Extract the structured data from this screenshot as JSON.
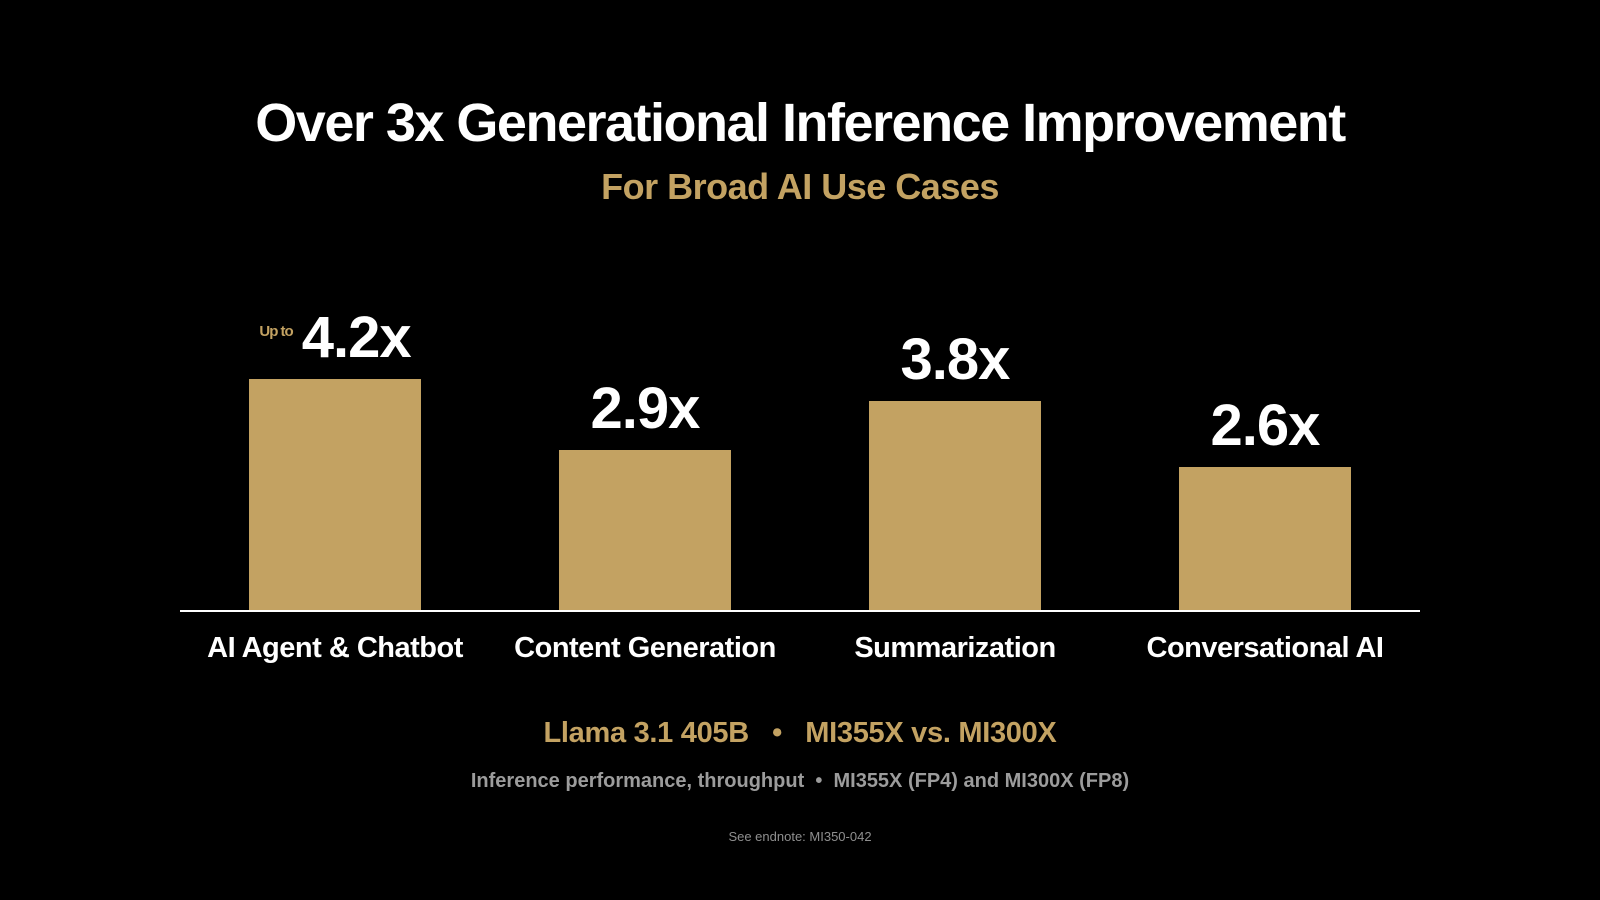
{
  "slide": {
    "title": "Over 3x Generational Inference Improvement",
    "subtitle": "For Broad AI Use Cases"
  },
  "chart_data": {
    "type": "bar",
    "title": "Over 3x Generational Inference Improvement",
    "subtitle": "For Broad AI Use Cases",
    "categories": [
      "AI Agent & Chatbot",
      "Content Generation",
      "Summarization",
      "Conversational AI"
    ],
    "values": [
      4.2,
      2.9,
      3.8,
      2.6
    ],
    "value_labels": [
      "4.2x",
      "2.9x",
      "3.8x",
      "2.6x"
    ],
    "value_prefixes": [
      "Up to",
      "",
      "",
      ""
    ],
    "bar_color": "#c3a262",
    "baseline_color": "#ffffff",
    "ylim": [
      0,
      4.6
    ],
    "grid": false,
    "legend": false
  },
  "footer": {
    "model_line": "Llama 3.1 405B   •   MI355X vs. MI300X",
    "detail_line": "Inference performance, throughput  •  MI355X (FP4) and MI300X (FP8)",
    "endnote": "See endnote: MI350-042"
  },
  "colors": {
    "background": "#000000",
    "accent_gold": "#c3a262",
    "text_white": "#ffffff",
    "text_gray": "#9c9c9c"
  }
}
